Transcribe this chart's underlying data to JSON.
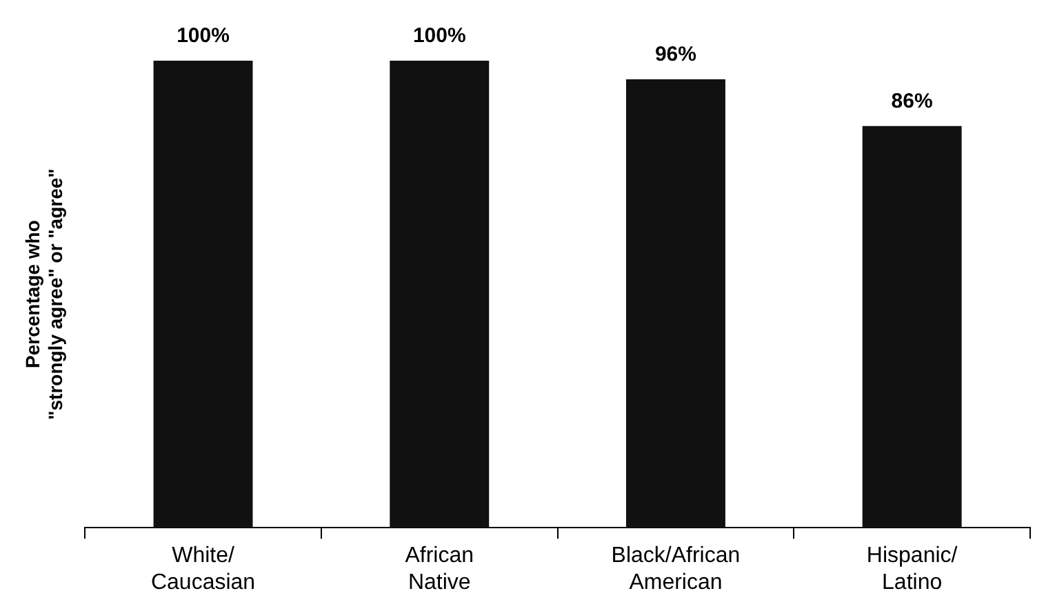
{
  "chart_data": {
    "type": "bar",
    "ylabel": "Percentage who\n\"strongly agree\" or \"agree\"",
    "categories": [
      "White/ Caucasian",
      "African Native",
      "Black/African American",
      "Hispanic/ Latino"
    ],
    "values": [
      100,
      100,
      96,
      86
    ],
    "color": "#111111",
    "value_labels": [
      "100%",
      "100%",
      "96%",
      "86%"
    ],
    "grid": false,
    "legend": false
  }
}
